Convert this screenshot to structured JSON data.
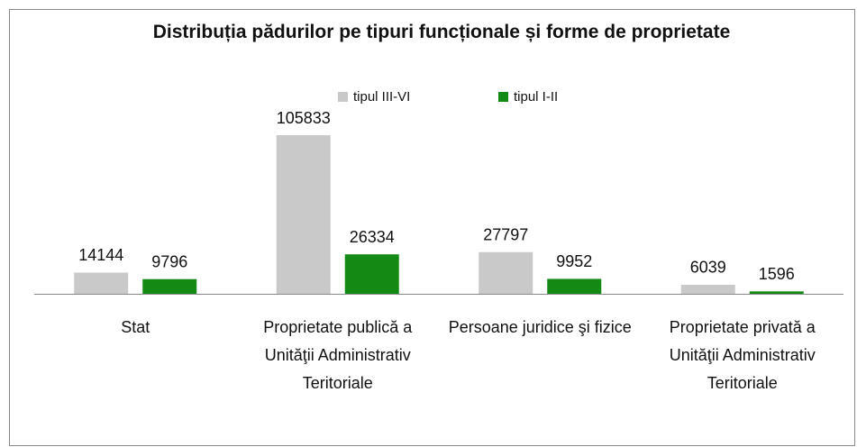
{
  "chart_data": {
    "type": "bar",
    "title": "Distribuția pădurilor pe tipuri funcționale și forme de proprietate",
    "categories": [
      "Stat",
      "Proprietate publică a Unităţii Administrativ Teritoriale",
      "Persoane juridice şi fizice",
      "Proprietate privată a Unităţii Administrativ Teritoriale"
    ],
    "series": [
      {
        "name": "tipul III-VI",
        "color": "#c9c9c9",
        "values": [
          14144,
          105833,
          27797,
          6039
        ]
      },
      {
        "name": "tipul I-II",
        "color": "#138a13",
        "values": [
          9796,
          26334,
          9952,
          1596
        ]
      }
    ],
    "legend": "top"
  }
}
